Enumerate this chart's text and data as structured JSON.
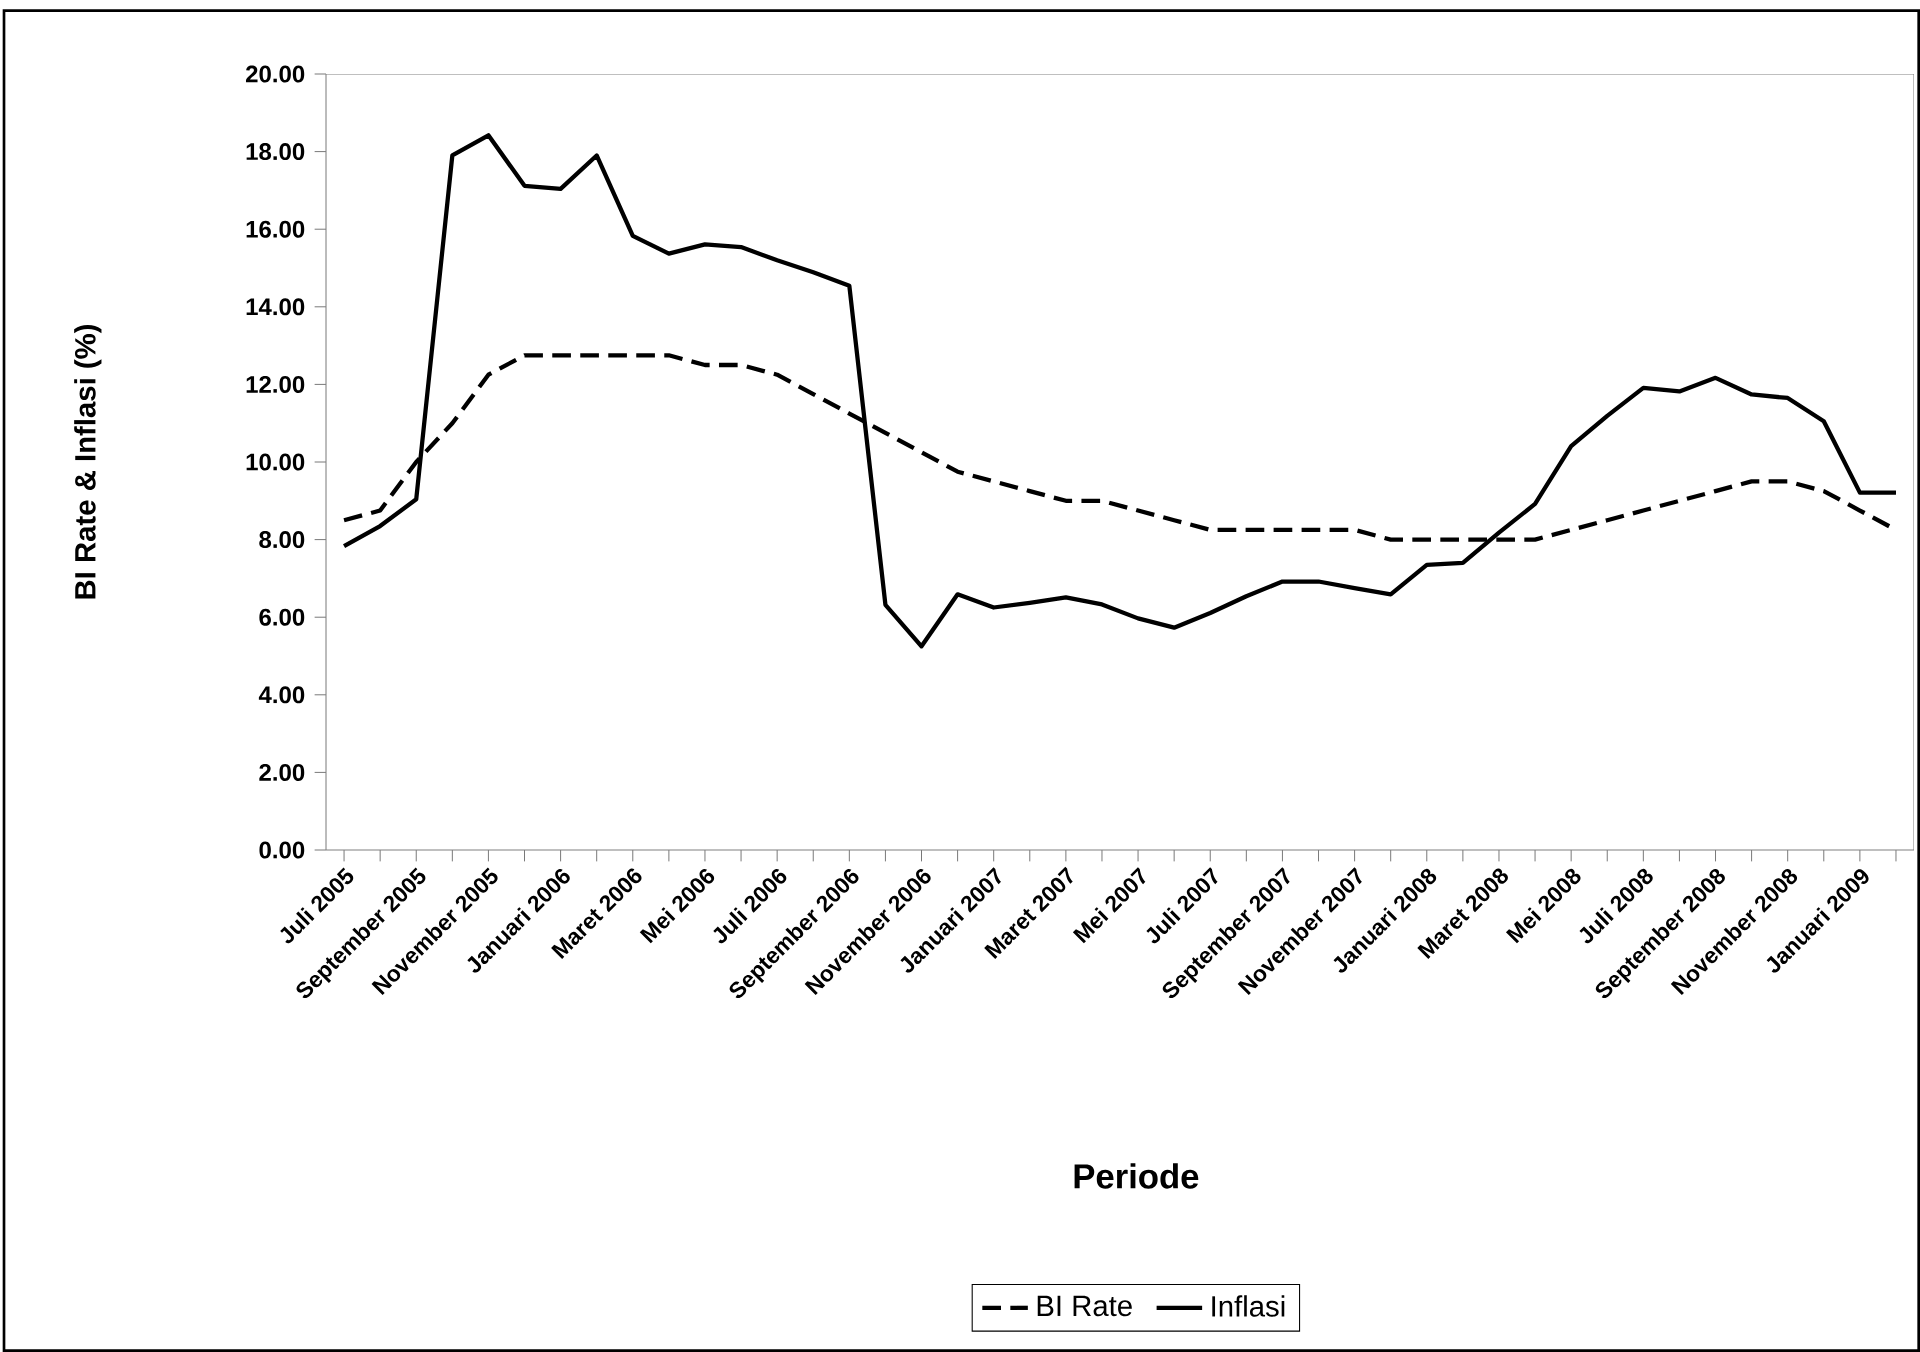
{
  "chart_data": {
    "type": "line",
    "xlabel": "Periode",
    "ylabel": "BI Rate & Inflasi (%)",
    "categories": [
      "Juli 2005",
      null,
      "September 2005",
      null,
      "November 2005",
      null,
      "Januari 2006",
      null,
      "Maret 2006",
      null,
      "Mei 2006",
      null,
      "Juli 2006",
      null,
      "September 2006",
      null,
      "November 2006",
      null,
      "Januari 2007",
      null,
      "Maret 2007",
      null,
      "Mei 2007",
      null,
      "Juli 2007",
      null,
      "September 2007",
      null,
      "November 2007",
      null,
      "Januari 2008",
      null,
      "Maret 2008",
      null,
      "Mei 2008",
      null,
      "Juli 2008",
      null,
      "September 2008",
      null,
      "November 2008",
      null,
      "Januari 2009",
      null
    ],
    "series": [
      {
        "name": "BI Rate",
        "color": "#000000",
        "line_style": "dashed",
        "values": [
          8.5,
          8.75,
          10.0,
          11.0,
          12.25,
          12.75,
          12.75,
          12.75,
          12.75,
          12.75,
          12.5,
          12.5,
          12.25,
          11.75,
          11.25,
          10.75,
          10.25,
          9.75,
          9.5,
          9.25,
          9.0,
          9.0,
          8.75,
          8.5,
          8.25,
          8.25,
          8.25,
          8.25,
          8.25,
          8.0,
          8.0,
          8.0,
          8.0,
          8.0,
          8.25,
          8.5,
          8.75,
          9.0,
          9.25,
          9.5,
          9.5,
          9.25,
          8.75,
          8.25
        ]
      },
      {
        "name": "Inflasi",
        "color": "#000000",
        "line_style": "solid",
        "values": [
          7.83,
          8.35,
          9.04,
          17.9,
          18.42,
          17.12,
          17.04,
          17.9,
          15.83,
          15.37,
          15.61,
          15.54,
          15.2,
          14.89,
          14.54,
          6.32,
          5.25,
          6.59,
          6.25,
          6.37,
          6.51,
          6.33,
          5.97,
          5.73,
          6.11,
          6.54,
          6.92,
          6.92,
          6.75,
          6.59,
          7.35,
          7.4,
          8.18,
          8.92,
          10.41,
          11.19,
          11.91,
          11.82,
          12.17,
          11.74,
          11.65,
          11.05,
          9.21,
          9.21
        ]
      }
    ],
    "ylim": [
      0,
      20
    ],
    "yticks": [
      {
        "value": 0,
        "label": "0.00"
      },
      {
        "value": 2,
        "label": "2.00"
      },
      {
        "value": 4,
        "label": "4.00"
      },
      {
        "value": 6,
        "label": "6.00"
      },
      {
        "value": 8,
        "label": "8.00"
      },
      {
        "value": 10,
        "label": "10.00"
      },
      {
        "value": 12,
        "label": "12.00"
      },
      {
        "value": 14,
        "label": "14.00"
      },
      {
        "value": 16,
        "label": "16.00"
      },
      {
        "value": 18,
        "label": "18.00"
      },
      {
        "value": 20,
        "label": "20.00"
      }
    ],
    "grid": false,
    "legend": "bottom",
    "marker": "none"
  }
}
